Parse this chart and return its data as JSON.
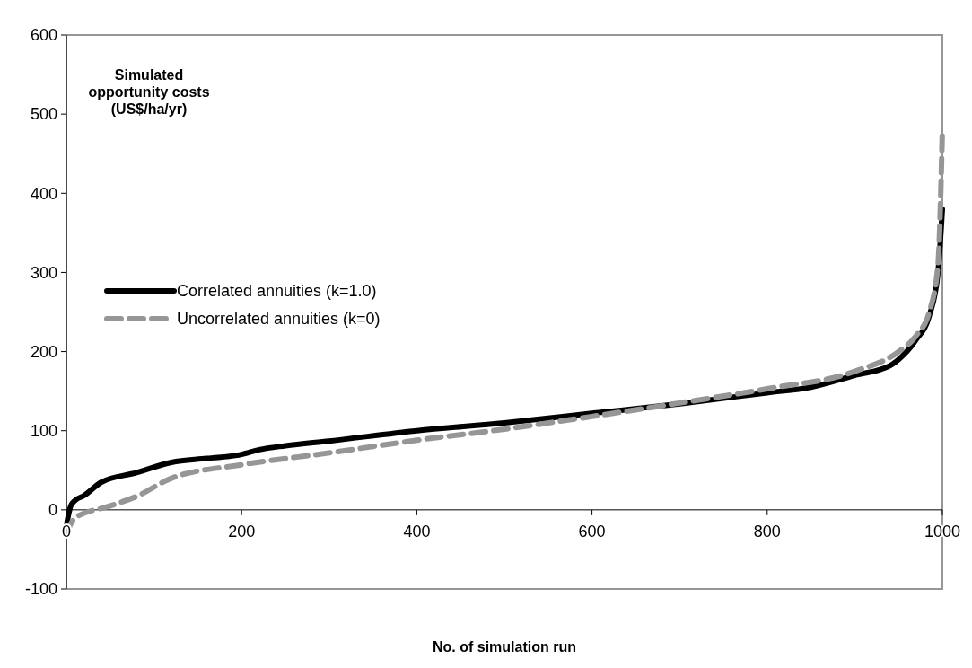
{
  "chart_data": {
    "type": "line",
    "ylabel": "Simulated opportunity costs (US$/ha/yr)",
    "xlabel": "No. of simulation run",
    "xlim": [
      0,
      1000
    ],
    "xticks": [
      0,
      200,
      400,
      600,
      800,
      1000
    ],
    "ylim": [
      -100,
      600
    ],
    "yticks": [
      -100,
      0,
      100,
      200,
      300,
      400,
      500,
      600
    ],
    "grid": false,
    "legend": "left",
    "series": [
      {
        "name": "Correlated annuities (k=1.0)",
        "color": "#000000",
        "line_style": "solid",
        "x": [
          0,
          5,
          10,
          20,
          40,
          80,
          120,
          160,
          200,
          220,
          250,
          300,
          400,
          500,
          600,
          700,
          800,
          850,
          900,
          940,
          955,
          970,
          985,
          995,
          1000
        ],
        "values": [
          -20,
          5,
          12,
          18,
          35,
          47,
          60,
          65,
          70,
          76,
          81,
          87,
          100,
          110,
          122,
          134,
          148,
          155,
          170,
          182,
          195,
          215,
          245,
          300,
          380
        ]
      },
      {
        "name": "Uncorrelated annuities (k=0)",
        "color": "#969696",
        "line_style": "dashed",
        "x": [
          0,
          10,
          50,
          80,
          120,
          200,
          300,
          400,
          500,
          600,
          700,
          800,
          900,
          950,
          970,
          985,
          995,
          1000
        ],
        "values": [
          -30,
          -10,
          5,
          17,
          40,
          57,
          72,
          88,
          102,
          118,
          135,
          153,
          175,
          200,
          220,
          250,
          310,
          480
        ]
      }
    ]
  }
}
